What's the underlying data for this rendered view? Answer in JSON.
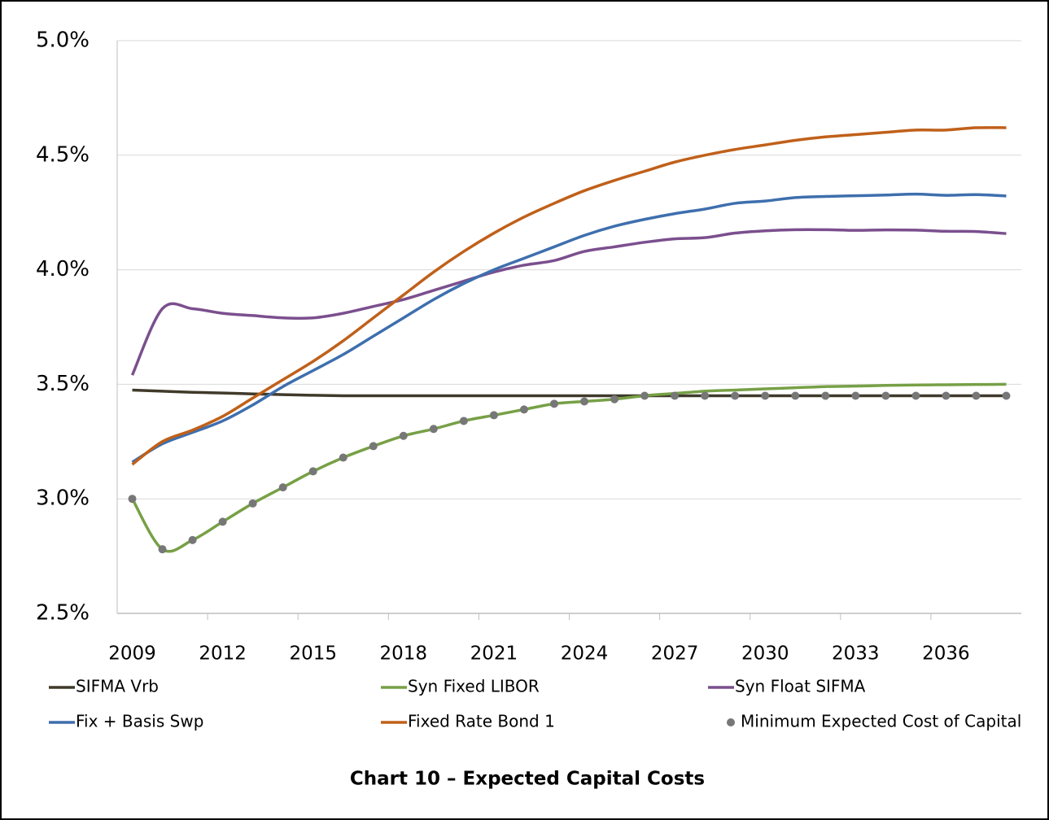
{
  "chart_data": {
    "type": "line",
    "title": "Chart 10 – Expected Capital Costs",
    "categories": [
      "2009",
      null,
      null,
      "2012",
      null,
      null,
      "2015",
      null,
      null,
      "2018",
      null,
      null,
      "2021",
      null,
      null,
      "2024",
      null,
      null,
      "2027",
      null,
      null,
      "2030",
      null,
      null,
      "2033",
      null,
      null,
      "2036",
      null,
      null
    ],
    "ylim": [
      2.5,
      5.0
    ],
    "yticks": [
      {
        "value": 2.5,
        "label": "2.5%"
      },
      {
        "value": 3.0,
        "label": "3.0%"
      },
      {
        "value": 3.5,
        "label": "3.5%"
      },
      {
        "value": 4.0,
        "label": "4.0%"
      },
      {
        "value": 4.5,
        "label": "4.5%"
      },
      {
        "value": 5.0,
        "label": "5.0%"
      }
    ],
    "grid": true,
    "legend": "bottom",
    "series": [
      {
        "name": "SIFMA Vrb",
        "color": "#3f3a2a",
        "values": [
          3.475,
          3.47,
          3.465,
          3.462,
          3.458,
          3.455,
          3.452,
          3.45,
          3.45,
          3.45,
          3.45,
          3.45,
          3.45,
          3.45,
          3.45,
          3.45,
          3.45,
          3.45,
          3.45,
          3.45,
          3.45,
          3.45,
          3.45,
          3.45,
          3.45,
          3.45,
          3.45,
          3.45,
          3.45,
          3.45
        ]
      },
      {
        "name": "Syn Fixed LIBOR",
        "color": "#77a046",
        "values": [
          3.0,
          2.78,
          2.82,
          2.9,
          2.98,
          3.05,
          3.12,
          3.18,
          3.23,
          3.275,
          3.305,
          3.34,
          3.365,
          3.39,
          3.415,
          3.425,
          3.435,
          3.45,
          3.46,
          3.47,
          3.475,
          3.48,
          3.485,
          3.49,
          3.492,
          3.495,
          3.497,
          3.498,
          3.499,
          3.5
        ]
      },
      {
        "name": "Syn Float SIFMA",
        "color": "#7b4f8e",
        "values": [
          3.54,
          3.83,
          3.83,
          3.81,
          3.8,
          3.79,
          3.79,
          3.81,
          3.84,
          3.87,
          3.91,
          3.95,
          3.99,
          4.02,
          4.04,
          4.08,
          4.1,
          4.12,
          4.135,
          4.14,
          4.16,
          4.17,
          4.175,
          4.175,
          4.172,
          4.174,
          4.173,
          4.168,
          4.167,
          4.158
        ]
      },
      {
        "name": "Fix + Basis Swp",
        "color": "#3e6fae",
        "values": [
          3.16,
          3.24,
          3.29,
          3.34,
          3.41,
          3.49,
          3.56,
          3.63,
          3.71,
          3.79,
          3.87,
          3.94,
          4.0,
          4.05,
          4.1,
          4.15,
          4.19,
          4.22,
          4.245,
          4.265,
          4.29,
          4.3,
          4.315,
          4.32,
          4.323,
          4.326,
          4.33,
          4.325,
          4.328,
          4.322
        ]
      },
      {
        "name": "Fixed Rate Bond 1",
        "color": "#c0601a",
        "values": [
          3.15,
          3.25,
          3.3,
          3.36,
          3.44,
          3.52,
          3.6,
          3.69,
          3.79,
          3.89,
          3.99,
          4.08,
          4.16,
          4.23,
          4.29,
          4.345,
          4.39,
          4.43,
          4.47,
          4.5,
          4.525,
          4.545,
          4.565,
          4.58,
          4.59,
          4.6,
          4.61,
          4.61,
          4.62,
          4.62
        ]
      },
      {
        "name": "Minimum Expected Cost of Capital",
        "color": "#777777",
        "marker": "dot",
        "values": [
          3.0,
          2.78,
          2.82,
          2.9,
          2.98,
          3.05,
          3.12,
          3.18,
          3.23,
          3.275,
          3.305,
          3.34,
          3.365,
          3.39,
          3.415,
          3.425,
          3.435,
          3.45,
          3.45,
          3.45,
          3.45,
          3.45,
          3.45,
          3.45,
          3.45,
          3.45,
          3.45,
          3.45,
          3.45,
          3.45
        ]
      }
    ]
  }
}
